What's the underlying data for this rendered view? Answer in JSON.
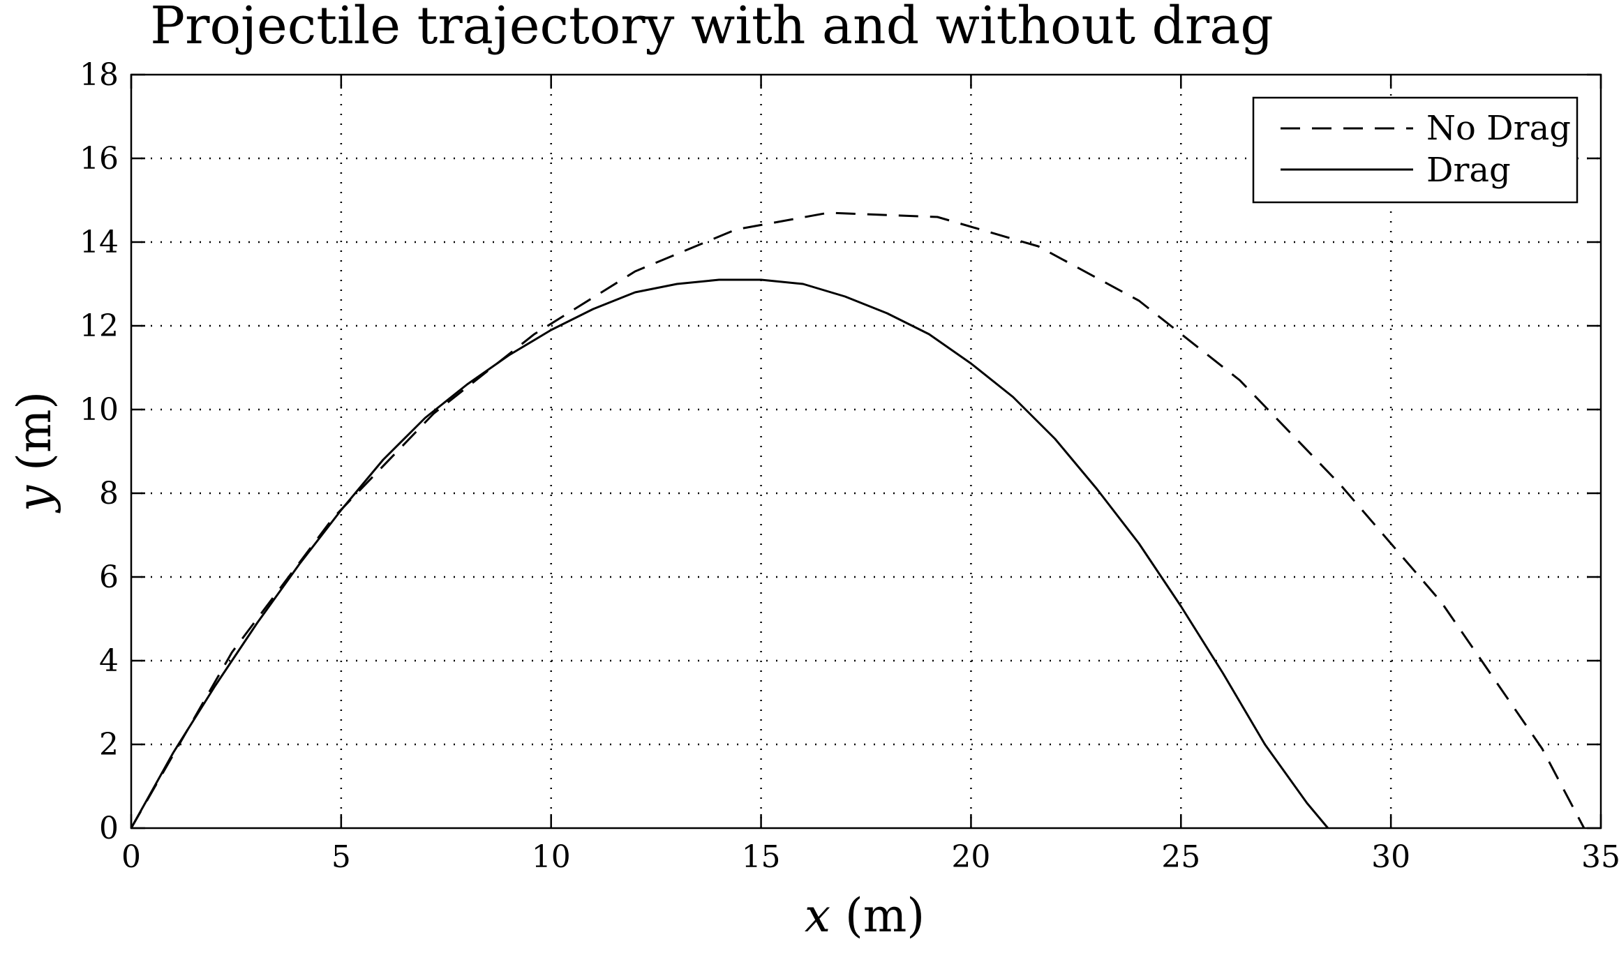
{
  "chart_data": {
    "type": "line",
    "title": "Projectile trajectory with and without drag",
    "xlabel": {
      "var": "x",
      "unit": " (m)"
    },
    "ylabel": {
      "var": "y",
      "unit": " (m)"
    },
    "xlim": [
      0,
      35
    ],
    "ylim": [
      0,
      18
    ],
    "xticks": [
      "0",
      "5",
      "10",
      "15",
      "20",
      "25",
      "30",
      "35"
    ],
    "yticks": [
      "0",
      "2",
      "4",
      "6",
      "8",
      "10",
      "12",
      "14",
      "16",
      "18"
    ],
    "grid": true,
    "legend_position": "top-right",
    "series": [
      {
        "name": "No Drag",
        "style": "dashed",
        "color": "#000000",
        "x": [
          0,
          2.4,
          4.8,
          7.2,
          9.6,
          12.0,
          14.4,
          16.6,
          19.2,
          21.6,
          24.0,
          26.4,
          28.8,
          31.2,
          33.6,
          34.6
        ],
        "y": [
          0,
          4.2,
          7.4,
          9.9,
          11.8,
          13.3,
          14.3,
          14.7,
          14.6,
          13.9,
          12.6,
          10.7,
          8.2,
          5.4,
          1.9,
          0
        ]
      },
      {
        "name": "Drag",
        "style": "solid",
        "color": "#000000",
        "x": [
          0,
          1,
          2,
          3,
          4,
          5,
          6,
          7,
          8,
          9,
          10,
          11,
          12,
          13,
          14,
          15,
          16,
          17,
          18,
          19,
          20,
          21,
          22,
          23,
          24,
          25,
          26,
          27,
          28,
          28.5
        ],
        "y": [
          0,
          1.8,
          3.4,
          4.9,
          6.3,
          7.6,
          8.8,
          9.8,
          10.6,
          11.3,
          11.9,
          12.4,
          12.8,
          13.0,
          13.1,
          13.1,
          13.0,
          12.7,
          12.3,
          11.8,
          11.1,
          10.3,
          9.3,
          8.1,
          6.8,
          5.3,
          3.7,
          2.0,
          0.6,
          0
        ]
      }
    ]
  }
}
